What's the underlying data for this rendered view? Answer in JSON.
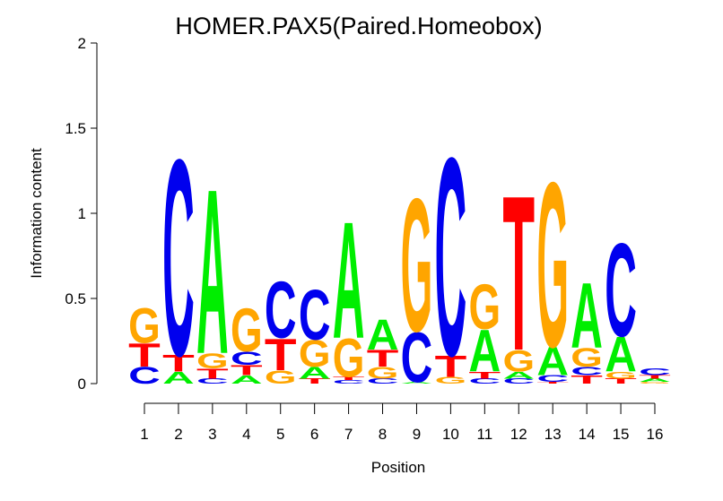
{
  "chart_data": {
    "type": "logo",
    "title": "HOMER.PAX5(Paired.Homeobox)",
    "xlabel": "Position",
    "ylabel": "Information content",
    "colors": {
      "A": "#00ee00",
      "C": "#0000ee",
      "G": "#ffa500",
      "T": "#ff0000"
    },
    "ylim": [
      0,
      2
    ],
    "yticks": [
      0,
      0.5,
      1,
      1.5,
      2
    ],
    "x": [
      1,
      2,
      3,
      4,
      5,
      6,
      7,
      8,
      9,
      10,
      11,
      12,
      13,
      14,
      15,
      16
    ],
    "columns": [
      [
        {
          "letter": "C",
          "value": 0.1
        },
        {
          "letter": "T",
          "value": 0.14
        },
        {
          "letter": "G",
          "value": 0.21
        }
      ],
      [
        {
          "letter": "A",
          "value": 0.07
        },
        {
          "letter": "T",
          "value": 0.1
        },
        {
          "letter": "C",
          "value": 1.18
        }
      ],
      [
        {
          "letter": "C",
          "value": 0.03
        },
        {
          "letter": "T",
          "value": 0.06
        },
        {
          "letter": "G",
          "value": 0.09
        },
        {
          "letter": "A",
          "value": 0.99
        }
      ],
      [
        {
          "letter": "A",
          "value": 0.05
        },
        {
          "letter": "T",
          "value": 0.06
        },
        {
          "letter": "C",
          "value": 0.08
        },
        {
          "letter": "G",
          "value": 0.26
        }
      ],
      [
        {
          "letter": "G",
          "value": 0.08
        },
        {
          "letter": "T",
          "value": 0.19
        },
        {
          "letter": "C",
          "value": 0.34
        }
      ],
      [
        {
          "letter": "T",
          "value": 0.03
        },
        {
          "letter": "A",
          "value": 0.07
        },
        {
          "letter": "G",
          "value": 0.16
        },
        {
          "letter": "C",
          "value": 0.3
        }
      ],
      [
        {
          "letter": "C",
          "value": 0.02
        },
        {
          "letter": "T",
          "value": 0.02
        },
        {
          "letter": "G",
          "value": 0.23
        },
        {
          "letter": "A",
          "value": 0.7
        }
      ],
      [
        {
          "letter": "C",
          "value": 0.03
        },
        {
          "letter": "G",
          "value": 0.07
        },
        {
          "letter": "T",
          "value": 0.1
        },
        {
          "letter": "A",
          "value": 0.18
        }
      ],
      [
        {
          "letter": "A",
          "value": 0.01
        },
        {
          "letter": "C",
          "value": 0.3
        },
        {
          "letter": "G",
          "value": 0.8
        }
      ],
      [
        {
          "letter": "G",
          "value": 0.04
        },
        {
          "letter": "T",
          "value": 0.13
        },
        {
          "letter": "C",
          "value": 1.19
        }
      ],
      [
        {
          "letter": "C",
          "value": 0.03
        },
        {
          "letter": "T",
          "value": 0.04
        },
        {
          "letter": "A",
          "value": 0.25
        },
        {
          "letter": "G",
          "value": 0.27
        }
      ],
      [
        {
          "letter": "C",
          "value": 0.03
        },
        {
          "letter": "A",
          "value": 0.04
        },
        {
          "letter": "G",
          "value": 0.13
        },
        {
          "letter": "T",
          "value": 0.93
        }
      ],
      [
        {
          "letter": "T",
          "value": 0.01
        },
        {
          "letter": "C",
          "value": 0.04
        },
        {
          "letter": "A",
          "value": 0.17
        },
        {
          "letter": "G",
          "value": 0.99
        }
      ],
      [
        {
          "letter": "T",
          "value": 0.05
        },
        {
          "letter": "C",
          "value": 0.05
        },
        {
          "letter": "G",
          "value": 0.11
        },
        {
          "letter": "A",
          "value": 0.39
        }
      ],
      [
        {
          "letter": "T",
          "value": 0.03
        },
        {
          "letter": "G",
          "value": 0.04
        },
        {
          "letter": "A",
          "value": 0.21
        },
        {
          "letter": "C",
          "value": 0.56
        }
      ],
      [
        {
          "letter": "G",
          "value": 0.01
        },
        {
          "letter": "A",
          "value": 0.02
        },
        {
          "letter": "T",
          "value": 0.02
        },
        {
          "letter": "C",
          "value": 0.04
        }
      ]
    ]
  }
}
